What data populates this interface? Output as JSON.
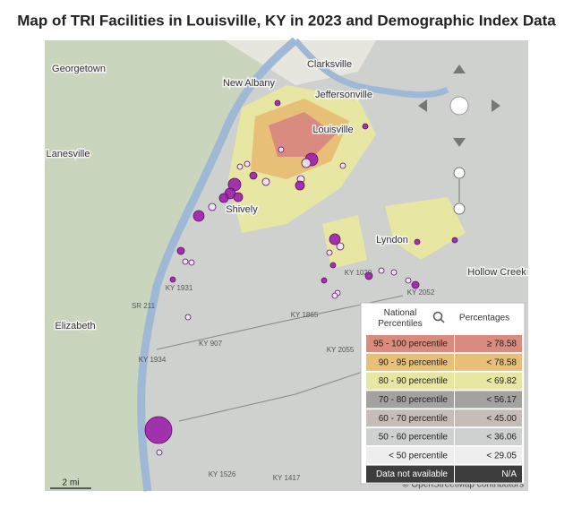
{
  "header": {
    "title": "Map of TRI Facilities in Louisville, KY in 2023 and Demographic Index Data"
  },
  "map": {
    "labels": [
      "Georgetown",
      "Clarksville",
      "New Albany",
      "Jeffersonville",
      "Louisville",
      "Lanesville",
      "Shively",
      "Elizabeth",
      "SR 211",
      "KY 1934",
      "KY 1526",
      "KY 1417",
      "KY 1865",
      "KY 2055",
      "KY 907",
      "KY 1931",
      "KY 2052",
      "Lyndon",
      "Hollow Creek",
      "KY 1020"
    ],
    "scale": "2 mi",
    "attribution": "© OpenStreetMap contributors"
  },
  "legend": {
    "header": {
      "left": "National Percentiles",
      "right": "Percentages"
    },
    "rows": [
      {
        "label": "95 - 100 percentile",
        "value": "≥ 78.58",
        "color": "#d98b7f"
      },
      {
        "label": "90 - 95 percentile",
        "value": "< 78.58",
        "color": "#e7bf76"
      },
      {
        "label": "80 - 90 percentile",
        "value": "< 69.82",
        "color": "#e7e6a2"
      },
      {
        "label": "70 - 80 percentile",
        "value": "< 56.17",
        "color": "#a3a29f"
      },
      {
        "label": "60 - 70 percentile",
        "value": "< 45.00",
        "color": "#c6bcb8"
      },
      {
        "label": "50 - 60 percentile",
        "value": "< 36.06",
        "color": "#cfd1d1"
      },
      {
        "label": "< 50 percentile",
        "value": "< 29.05",
        "color": "#eeeeee"
      },
      {
        "label": "Data not available",
        "value": "N/A",
        "color": "#3d3d3d"
      }
    ]
  }
}
